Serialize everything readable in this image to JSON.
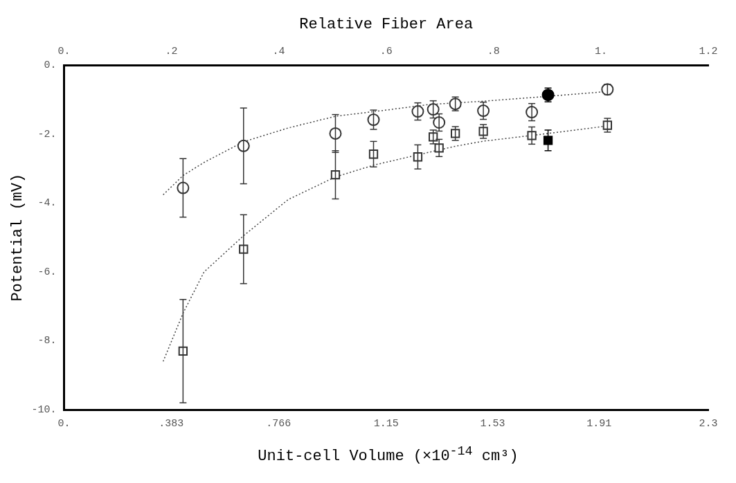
{
  "chart_data": {
    "type": "scatter",
    "xlabel": "Unit-cell Volume (×10$^{-14}$ cm³)",
    "x2label": "Relative Fiber Area",
    "ylabel": "Potential (mV)",
    "xlim": [
      0,
      2.3
    ],
    "xticks": [
      {
        "value": 0,
        "label": "0."
      },
      {
        "value": 0.383,
        "label": ".383"
      },
      {
        "value": 0.766,
        "label": ".766"
      },
      1.15,
      1.53,
      1.91,
      2.3
    ],
    "x2lim": [
      0,
      1.2
    ],
    "x2ticks": [
      {
        "value": 0,
        "label": "0."
      },
      {
        "value": 0.2,
        "label": ".2"
      },
      {
        "value": 0.4,
        "label": ".4"
      },
      {
        "value": 0.6,
        "label": ".6"
      },
      {
        "value": 0.8,
        "label": ".8"
      },
      {
        "value": 1,
        "label": "1."
      },
      1.2
    ],
    "ylim": [
      -10,
      0
    ],
    "yticks": [
      {
        "value": -10,
        "label": "-10."
      },
      {
        "value": -8,
        "label": "-8."
      },
      {
        "value": -6,
        "label": "-6."
      },
      {
        "value": -4,
        "label": "-4."
      },
      {
        "value": -2,
        "label": "-2."
      },
      {
        "value": 0,
        "label": "0."
      }
    ],
    "grid": false,
    "legend": false,
    "series": [
      {
        "marker": "circle",
        "color": "#333333",
        "x": [
          0.425,
          0.641,
          0.969,
          1.105,
          1.263,
          1.318,
          1.339,
          1.397,
          1.497,
          1.67,
          1.94
        ],
        "values": [
          -3.56,
          -2.34,
          -1.98,
          -1.58,
          -1.34,
          -1.28,
          -1.66,
          -1.12,
          -1.32,
          -1.36,
          -0.7
        ],
        "errors": [
          0.85,
          1.1,
          0.55,
          0.28,
          0.25,
          0.25,
          0.25,
          0.2,
          0.25,
          0.25,
          0.15
        ]
      },
      {
        "marker": "square",
        "color": "#333333",
        "x": [
          0.425,
          0.641,
          0.969,
          1.105,
          1.263,
          1.318,
          1.339,
          1.397,
          1.497,
          1.67,
          1.94
        ],
        "values": [
          -8.3,
          -5.34,
          -3.18,
          -2.58,
          -2.66,
          -2.08,
          -2.4,
          -1.98,
          -1.92,
          -2.04,
          -1.74
        ],
        "errors": [
          1.5,
          1.0,
          0.7,
          0.37,
          0.35,
          0.2,
          0.25,
          0.2,
          0.2,
          0.25,
          0.2
        ]
      },
      {
        "marker": "circle",
        "color": "#000000",
        "x": [
          1.728
        ],
        "values": [
          -0.86
        ],
        "errors": [
          0.2
        ]
      },
      {
        "marker": "square",
        "color": "#000000",
        "x": [
          1.728
        ],
        "values": [
          -2.18
        ],
        "errors": [
          0.3
        ]
      },
      {
        "type": "line",
        "marker": "none",
        "line_style": "dotted",
        "color": "#444444",
        "x": [
          0.354,
          0.425,
          0.5,
          0.641,
          0.8,
          0.969,
          1.15,
          1.3,
          1.5,
          1.728,
          1.94
        ],
        "values": [
          -3.76,
          -3.2,
          -2.82,
          -2.22,
          -1.82,
          -1.48,
          -1.3,
          -1.14,
          -1.04,
          -0.9,
          -0.76
        ]
      },
      {
        "type": "line",
        "marker": "none",
        "line_style": "dotted",
        "color": "#444444",
        "x": [
          0.354,
          0.425,
          0.5,
          0.641,
          0.8,
          0.969,
          1.105,
          1.263,
          1.397,
          1.5,
          1.728,
          1.94
        ],
        "values": [
          -8.6,
          -7.2,
          -6.0,
          -4.95,
          -3.9,
          -3.24,
          -2.9,
          -2.6,
          -2.35,
          -2.2,
          -1.98,
          -1.76
        ]
      }
    ]
  }
}
